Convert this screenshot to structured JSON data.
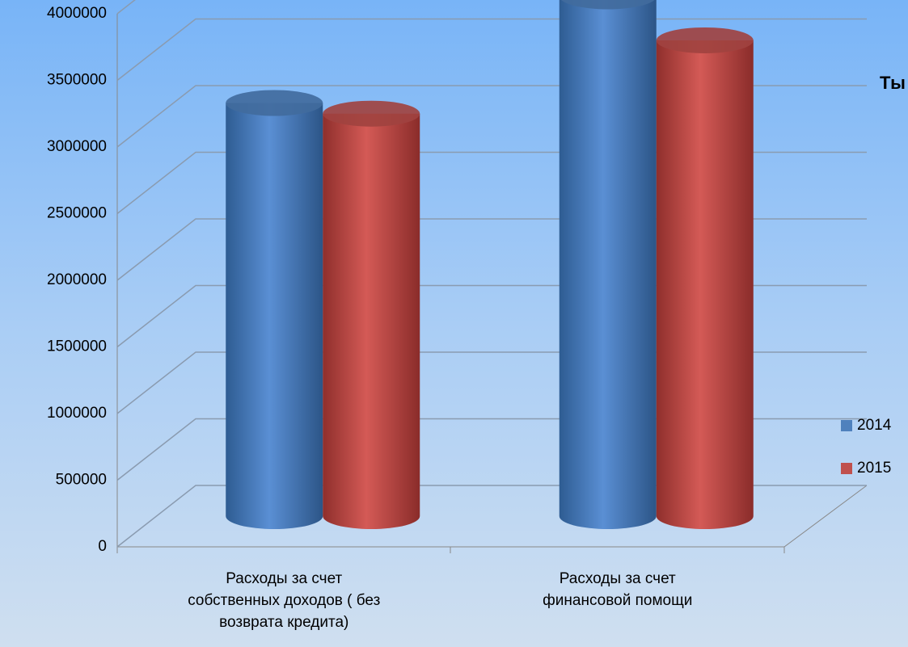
{
  "chart_data": {
    "type": "bar3d",
    "annotation": "Ты",
    "categories": [
      "Расходы за счет собственных доходов ( без возврата кредита)",
      "Расходы за счет финансовой помощи"
    ],
    "series": [
      {
        "name": "2014",
        "color": "#4f81bd",
        "values": [
          3100000,
          3900000
        ]
      },
      {
        "name": "2015",
        "color": "#c0504d",
        "values": [
          3020000,
          3570000
        ]
      }
    ],
    "ylim": [
      0,
      4000000
    ],
    "yticks": [
      0,
      500000,
      1000000,
      1500000,
      2000000,
      2500000,
      3000000,
      3500000,
      4000000
    ],
    "grid": true,
    "legend": "right"
  }
}
